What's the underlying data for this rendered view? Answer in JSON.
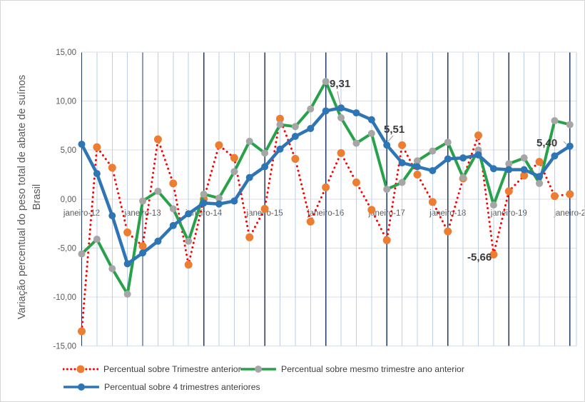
{
  "y_axis": {
    "title": "Variação percentual do peso total de abate de suínos Brasil",
    "ticks": [
      {
        "label": "15,00",
        "value": 15
      },
      {
        "label": "10,00",
        "value": 10
      },
      {
        "label": "5,00",
        "value": 5
      },
      {
        "label": "0,00",
        "value": 0
      },
      {
        "label": "-5,00",
        "value": -5
      },
      {
        "label": "-10,00",
        "value": -10
      },
      {
        "label": "-15,00",
        "value": -15
      }
    ]
  },
  "chart_data": {
    "type": "line",
    "title": "",
    "xlabel": "",
    "ylabel": "Variação percentual do peso total de abate de suínos Brasil",
    "ylim": [
      -15,
      15
    ],
    "grid": "horizontal every 5; vertical every quarter, dark line each January",
    "legend_position": "bottom",
    "n_points": 33,
    "points_per_label": 4,
    "x_labels": [
      "janeiro-12",
      "janeiro-13",
      "janeiro-14",
      "janeiro-15",
      "janeiro-16",
      "janeiro-17",
      "janeiro-18",
      "janeiro-19",
      "janeiro-2"
    ],
    "series": [
      {
        "name": "Percentual sobre Trimestre anterior",
        "line_color": "#FF0000",
        "line_style": "dotted",
        "marker_color": "#ED7D31",
        "values": [
          -13.5,
          5.3,
          3.2,
          -3.4,
          -4.8,
          6.1,
          1.6,
          -6.7,
          0.0,
          5.5,
          4.2,
          -3.9,
          -1.0,
          8.2,
          4.1,
          -2.3,
          1.2,
          4.7,
          1.7,
          -1.1,
          -4.2,
          5.5,
          2.5,
          -0.3,
          -3.3,
          2.1,
          6.5,
          -5.66,
          0.8,
          2.4,
          3.8,
          0.3,
          0.5
        ]
      },
      {
        "name": "Percentual sobre mesmo trimestre ano anterior",
        "line_color": "#28A14B",
        "line_style": "solid",
        "marker_color": "#A6A6A6",
        "values": [
          -5.6,
          -4.1,
          -7.1,
          -9.7,
          -0.2,
          0.8,
          -1.0,
          -4.3,
          0.5,
          0.1,
          2.8,
          5.9,
          4.7,
          7.6,
          7.4,
          9.2,
          12.0,
          8.3,
          5.7,
          6.7,
          1.0,
          1.7,
          3.9,
          4.9,
          5.8,
          2.2,
          5.0,
          -0.6,
          3.6,
          4.2,
          1.6,
          8.0,
          7.6
        ]
      },
      {
        "name": "Percentual sobre 4 trimestres anteriores",
        "line_color": "#2E75B6",
        "line_style": "solid",
        "marker_color": "#2E75B6",
        "values": [
          5.6,
          2.6,
          -1.7,
          -6.6,
          -5.5,
          -4.3,
          -2.7,
          -1.5,
          -0.4,
          -0.5,
          -0.2,
          2.2,
          3.3,
          5.1,
          6.4,
          7.2,
          9.0,
          9.31,
          8.8,
          8.1,
          5.51,
          3.7,
          3.3,
          2.9,
          4.1,
          4.2,
          4.5,
          3.1,
          3.0,
          3.0,
          2.3,
          4.4,
          5.4
        ]
      }
    ],
    "annotations": [
      {
        "text": "9,31",
        "series_index": 2,
        "point_index": 17
      },
      {
        "text": "5,51",
        "series_index": 2,
        "point_index": 20
      },
      {
        "text": "5,40",
        "series_index": 2,
        "point_index": 32
      },
      {
        "text": "-5,66",
        "series_index": 0,
        "point_index": 27
      }
    ]
  },
  "legend": {
    "items": [
      {
        "label": "Percentual sobre Trimestre anterior",
        "series_index": 0
      },
      {
        "label": "Percentual sobre mesmo trimestre ano anterior",
        "series_index": 1
      },
      {
        "label": "Percentual sobre 4 trimestres anteriores",
        "series_index": 2
      }
    ]
  },
  "colors": {
    "grid_horizontal": "#D8DEE8",
    "grid_quarter": "#BDCEEA",
    "grid_january": "#1F3864",
    "axis_text": "#595959",
    "annotation_text": "#3A3A3A",
    "leader_line": "#A6A6A6"
  }
}
